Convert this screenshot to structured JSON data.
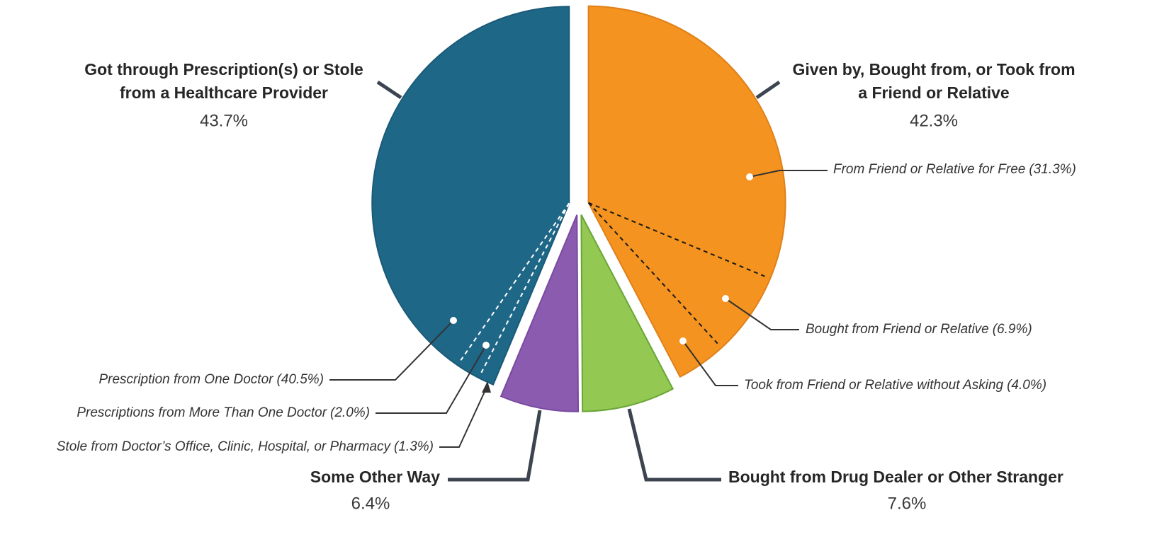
{
  "chart_data": {
    "type": "pie",
    "slices": [
      {
        "label_lines": [
          "Given by, Bought from, or Took from",
          "a Friend or Relative"
        ],
        "value": 42.3,
        "value_label": "42.3%",
        "color": "#f4931f",
        "stroke": "#e0801a",
        "parts": {
          "categories": [
            "From Friend or Relative for Free",
            "Bought from Friend or Relative",
            "Took from Friend or Relative without Asking"
          ],
          "values": [
            31.3,
            6.9,
            4.0
          ],
          "value_labels": [
            "(31.3%)",
            "(6.9%)",
            "(4.0%)"
          ],
          "divider_color": "#1a1a1a"
        }
      },
      {
        "label_lines": [
          "Bought from Drug Dealer or Other Stranger"
        ],
        "value": 7.6,
        "value_label": "7.6%",
        "color": "#93c852",
        "stroke": "#6aa536"
      },
      {
        "label_lines": [
          "Some Other Way"
        ],
        "value": 6.4,
        "value_label": "6.4%",
        "color": "#8b5bb0",
        "stroke": "#7a4aa0"
      },
      {
        "label_lines": [
          "Got through Prescription(s) or Stole",
          "from a Healthcare Provider"
        ],
        "value": 43.7,
        "value_label": "43.7%",
        "color": "#1f6787",
        "stroke": "#1a5a78",
        "parts": {
          "categories": [
            "Stole from Doctor’s Office, Clinic, Hospital, or Pharmacy",
            "Prescriptions from More Than One Doctor",
            "Prescription from One Doctor"
          ],
          "values": [
            1.3,
            2.0,
            40.5
          ],
          "value_labels": [
            "(1.3%)",
            "(2.0%)",
            "(40.5%)"
          ],
          "divider_color": "#ffffff"
        }
      }
    ]
  }
}
